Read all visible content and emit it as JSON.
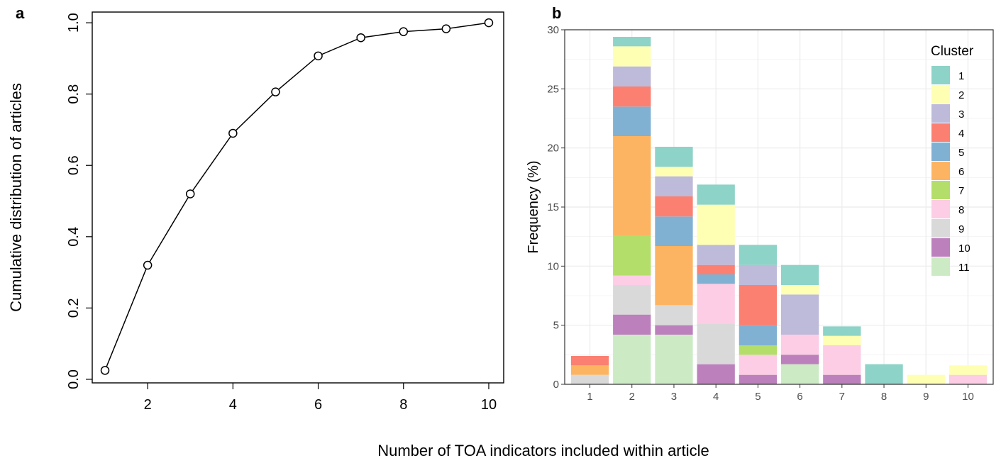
{
  "shared_xlabel": "Number of TOA indicators included within article",
  "chart_data": [
    {
      "panel": "a",
      "type": "line",
      "marker": "open-circle",
      "ylabel": "Cumulative distribution of articles",
      "xlabel": "",
      "x": [
        1,
        2,
        3,
        4,
        5,
        6,
        7,
        8,
        9,
        10
      ],
      "y": [
        0.025,
        0.32,
        0.52,
        0.69,
        0.806,
        0.907,
        0.958,
        0.975,
        0.983,
        1.0
      ],
      "xticks": [
        "2",
        "4",
        "6",
        "8",
        "10"
      ],
      "yticks": [
        "0.0",
        "0.2",
        "0.4",
        "0.6",
        "0.8",
        "1.0"
      ],
      "xlim": [
        0.7,
        10.35
      ],
      "ylim": [
        -0.01,
        1.03
      ],
      "grid": false
    },
    {
      "panel": "b",
      "type": "bar",
      "stacked": true,
      "ylabel": "Frequency (%)",
      "xlabel": "",
      "categories": [
        "1",
        "2",
        "3",
        "4",
        "5",
        "6",
        "7",
        "8",
        "9",
        "10"
      ],
      "yticks": [
        "0",
        "5",
        "10",
        "15",
        "20",
        "25",
        "30"
      ],
      "ylim": [
        0,
        30
      ],
      "grid": true,
      "legend_title": "Cluster",
      "legend_position": "top-right",
      "series": [
        {
          "name": "11",
          "color": "#CCEBC5",
          "values": [
            0,
            4.2,
            4.2,
            0,
            0,
            1.7,
            0,
            0,
            0,
            0
          ]
        },
        {
          "name": "10",
          "color": "#BC80BD",
          "values": [
            0,
            1.7,
            0.8,
            1.7,
            0.8,
            0.8,
            0.8,
            0,
            0,
            0
          ]
        },
        {
          "name": "9",
          "color": "#D9D9D9",
          "values": [
            0.8,
            2.5,
            1.7,
            3.4,
            0,
            0,
            0,
            0,
            0,
            0
          ]
        },
        {
          "name": "8",
          "color": "#FCCDE5",
          "values": [
            0,
            0.8,
            0,
            3.4,
            1.7,
            1.7,
            2.5,
            0,
            0,
            0.8
          ]
        },
        {
          "name": "7",
          "color": "#B3DE69",
          "values": [
            0,
            3.4,
            0,
            0,
            0.8,
            0,
            0,
            0,
            0,
            0
          ]
        },
        {
          "name": "6",
          "color": "#FDB462",
          "values": [
            0.8,
            8.4,
            5.0,
            0,
            0,
            0,
            0,
            0,
            0,
            0
          ]
        },
        {
          "name": "5",
          "color": "#80B1D3",
          "values": [
            0,
            2.5,
            2.5,
            0.8,
            1.7,
            0,
            0,
            0,
            0,
            0
          ]
        },
        {
          "name": "4",
          "color": "#FB8072",
          "values": [
            0.8,
            1.7,
            1.7,
            0.8,
            3.4,
            0,
            0,
            0,
            0,
            0
          ]
        },
        {
          "name": "3",
          "color": "#BEBADA",
          "values": [
            0,
            1.7,
            1.7,
            1.7,
            1.7,
            3.4,
            0,
            0,
            0,
            0
          ]
        },
        {
          "name": "2",
          "color": "#FFFFB3",
          "values": [
            0,
            1.7,
            0.8,
            3.4,
            0,
            0.8,
            0.8,
            0,
            0.8,
            0.8
          ]
        },
        {
          "name": "1",
          "color": "#8DD3C7",
          "values": [
            0,
            0.8,
            1.7,
            1.7,
            1.7,
            1.7,
            0.8,
            1.7,
            0,
            0
          ]
        }
      ],
      "legend_order": [
        "1",
        "2",
        "3",
        "4",
        "5",
        "6",
        "7",
        "8",
        "9",
        "10",
        "11"
      ]
    }
  ]
}
